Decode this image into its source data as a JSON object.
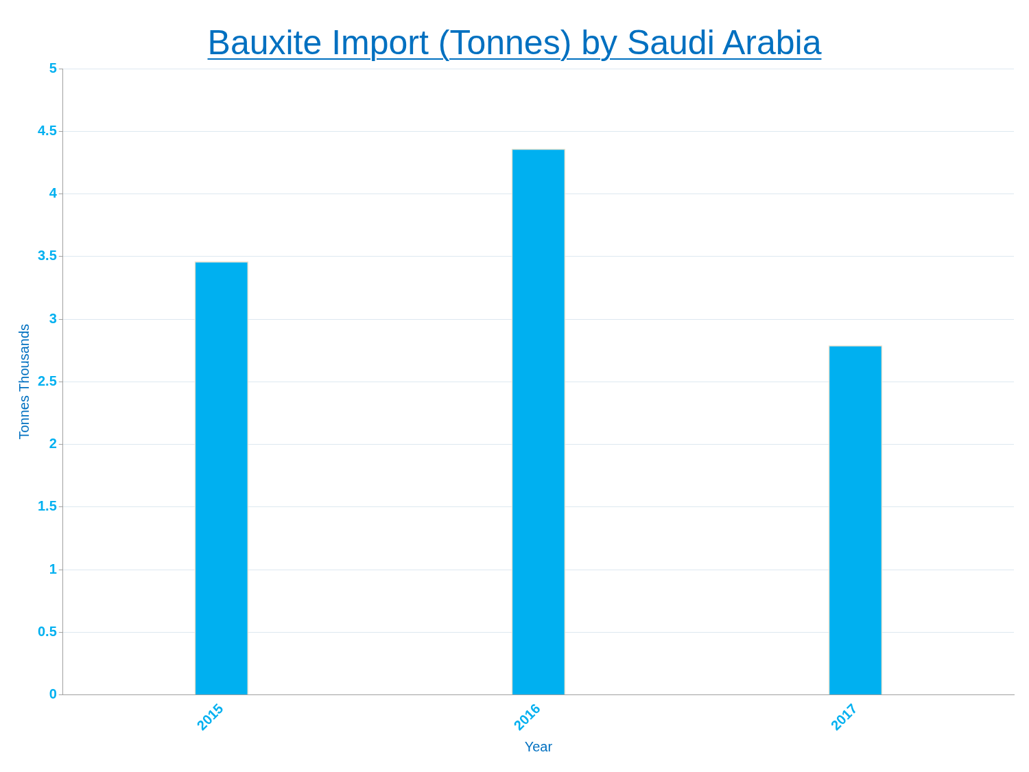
{
  "chart_data": {
    "type": "bar",
    "title": "Bauxite Import (Tonnes) by Saudi Arabia",
    "xlabel": "Year",
    "ylabel": "Tonnes Thousands",
    "categories": [
      "2015",
      "2016",
      "2017"
    ],
    "values": [
      3.46,
      4.36,
      2.79
    ],
    "color": "#00b0f0",
    "ylim": [
      0,
      5
    ],
    "yticks": [
      0,
      0.5,
      1,
      1.5,
      2,
      2.5,
      3,
      3.5,
      4,
      4.5,
      5
    ],
    "grid": "y",
    "legend": false
  }
}
